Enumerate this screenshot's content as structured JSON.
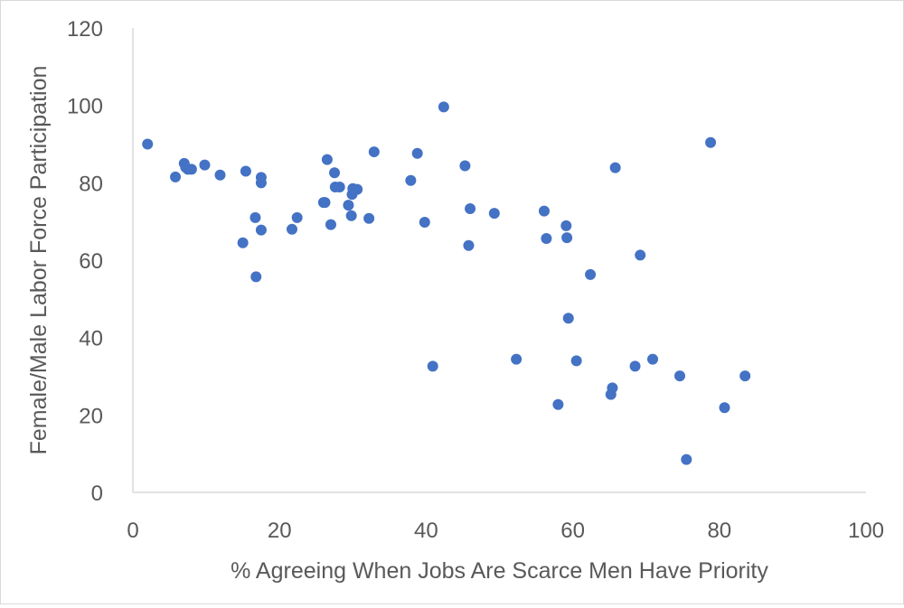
{
  "chart_data": {
    "type": "scatter",
    "title": "",
    "xlabel": "% Agreeing When Jobs Are Scarce Men Have Priority",
    "ylabel": "Female/Male Labor Force Participation",
    "xlim": [
      0,
      100
    ],
    "ylim": [
      0,
      120
    ],
    "x_ticks": [
      "0",
      "20",
      "40",
      "60",
      "80",
      "100"
    ],
    "y_ticks": [
      "0",
      "20",
      "40",
      "60",
      "80",
      "100",
      "120"
    ],
    "grid": false,
    "legend": "none",
    "marker_color": "#4472c4",
    "axis_color": "#d9d9d9",
    "text_color": "#595959",
    "series": [
      {
        "points": [
          [
            2,
            90
          ],
          [
            5.8,
            81.5
          ],
          [
            7,
            85
          ],
          [
            7.5,
            83.5
          ],
          [
            7.2,
            84
          ],
          [
            8,
            83.5
          ],
          [
            9.8,
            84.6
          ],
          [
            11.9,
            82
          ],
          [
            15,
            64.5
          ],
          [
            15.4,
            83
          ],
          [
            16.7,
            71
          ],
          [
            16.8,
            55.7
          ],
          [
            17.5,
            67.8
          ],
          [
            17.5,
            80
          ],
          [
            17.5,
            81.4
          ],
          [
            21.7,
            68
          ],
          [
            22.4,
            71
          ],
          [
            26,
            74.9
          ],
          [
            26.2,
            74.9
          ],
          [
            26.5,
            86
          ],
          [
            27,
            69.2
          ],
          [
            27.5,
            82.6
          ],
          [
            27.6,
            78.9
          ],
          [
            28.2,
            78.9
          ],
          [
            29.4,
            74.2
          ],
          [
            29.8,
            71.5
          ],
          [
            29.9,
            77
          ],
          [
            30,
            78.5
          ],
          [
            30.6,
            78.3
          ],
          [
            32.2,
            70.8
          ],
          [
            32.9,
            88
          ],
          [
            37.9,
            80.6
          ],
          [
            38.8,
            87.6
          ],
          [
            39.8,
            69.8
          ],
          [
            40.9,
            32.6
          ],
          [
            42.4,
            99.6
          ],
          [
            45.3,
            84.4
          ],
          [
            45.8,
            63.8
          ],
          [
            46,
            73.3
          ],
          [
            49.3,
            72.1
          ],
          [
            52.3,
            34.4
          ],
          [
            56.1,
            72.7
          ],
          [
            56.4,
            65.6
          ],
          [
            58,
            22.7
          ],
          [
            59.1,
            68.9
          ],
          [
            59.2,
            65.8
          ],
          [
            59.4,
            45
          ],
          [
            60.5,
            34
          ],
          [
            62.4,
            56.3
          ],
          [
            65.2,
            25.3
          ],
          [
            65.4,
            27
          ],
          [
            65.8,
            83.9
          ],
          [
            68.5,
            32.6
          ],
          [
            69.2,
            61.3
          ],
          [
            70.9,
            34.4
          ],
          [
            74.6,
            30.1
          ],
          [
            75.5,
            8.5
          ],
          [
            78.8,
            90.4
          ],
          [
            80.7,
            21.9
          ],
          [
            83.5,
            30.1
          ]
        ]
      }
    ]
  }
}
